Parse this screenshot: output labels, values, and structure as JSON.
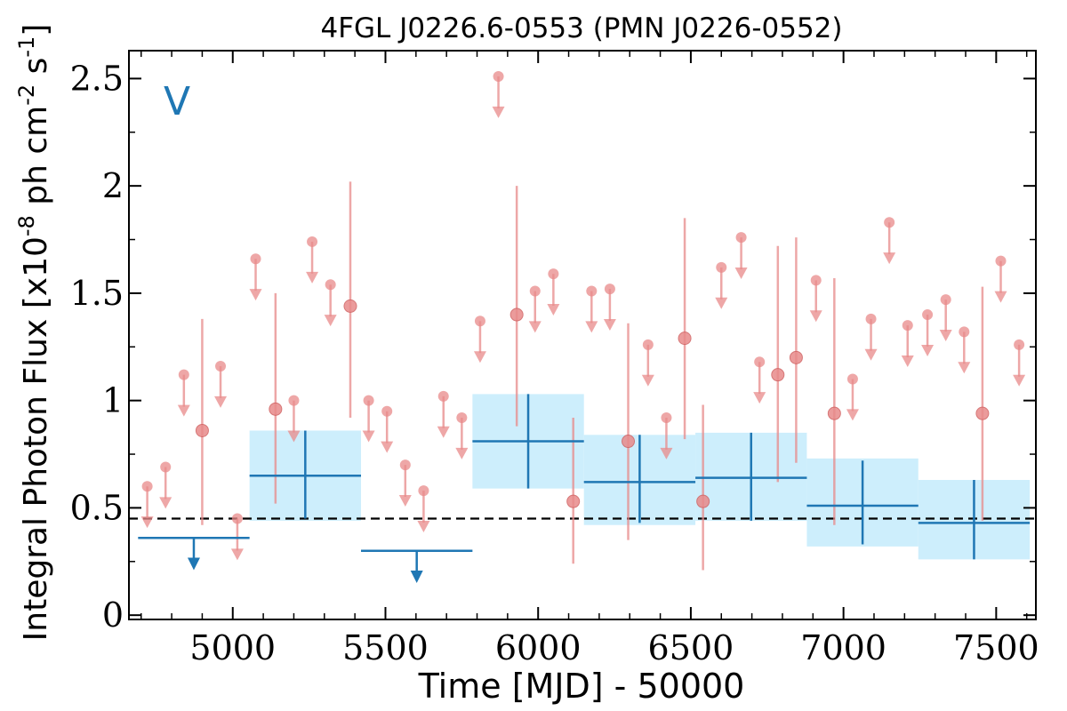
{
  "chart_data": {
    "type": "scatter",
    "title": "4FGL J0226.6-0553 (PMN J0226-0552)",
    "xlabel": "Time [MJD] - 50000",
    "ylabel": "Integral Photon Flux [x10^-8 ph cm^-2 s^-1]",
    "band_label": "V",
    "xlim": [
      4660,
      7630
    ],
    "ylim": [
      -0.02,
      2.63
    ],
    "xticks": [
      5000,
      5500,
      6000,
      6500,
      7000,
      7500
    ],
    "xtick_labels": [
      "5000",
      "5500",
      "6000",
      "6500",
      "7000",
      "7500"
    ],
    "yticks": [
      0,
      0.5,
      1,
      1.5,
      2,
      2.5
    ],
    "ytick_labels": [
      "0",
      "0.5",
      "1",
      "1.5",
      "2",
      "2.5"
    ],
    "reference_line": 0.45,
    "colors": {
      "fine_bins": "#e88a8a",
      "coarse_bins": "#1f77b4",
      "uncertainty_band": "#cdeefc",
      "reference_line": "#000000"
    },
    "series": [
      {
        "points": [
          {
            "x": 4720,
            "y": 0.6,
            "ul": true
          },
          {
            "x": 4780,
            "y": 0.69,
            "ul": true
          },
          {
            "x": 4840,
            "y": 1.12,
            "ul": true
          },
          {
            "x": 4900,
            "y": 0.86,
            "lo": 0.42,
            "hi": 1.38
          },
          {
            "x": 4960,
            "y": 1.16,
            "ul": true
          },
          {
            "x": 5015,
            "y": 0.45,
            "ul": true
          },
          {
            "x": 5075,
            "y": 1.66,
            "ul": true
          },
          {
            "x": 5140,
            "y": 0.96,
            "lo": 0.52,
            "hi": 1.5
          },
          {
            "x": 5200,
            "y": 1.0,
            "ul": true
          },
          {
            "x": 5260,
            "y": 1.74,
            "ul": true
          },
          {
            "x": 5320,
            "y": 1.54,
            "ul": true
          },
          {
            "x": 5385,
            "y": 1.44,
            "lo": 0.92,
            "hi": 2.02
          },
          {
            "x": 5445,
            "y": 1.0,
            "ul": true
          },
          {
            "x": 5505,
            "y": 0.95,
            "ul": true
          },
          {
            "x": 5565,
            "y": 0.7,
            "ul": true
          },
          {
            "x": 5625,
            "y": 0.58,
            "ul": true
          },
          {
            "x": 5690,
            "y": 1.02,
            "ul": true
          },
          {
            "x": 5750,
            "y": 0.92,
            "ul": true
          },
          {
            "x": 5810,
            "y": 1.37,
            "ul": true
          },
          {
            "x": 5870,
            "y": 2.51,
            "ul": true
          },
          {
            "x": 5930,
            "y": 1.4,
            "lo": 0.88,
            "hi": 2.0
          },
          {
            "x": 5990,
            "y": 1.51,
            "ul": true
          },
          {
            "x": 6050,
            "y": 1.59,
            "ul": true
          },
          {
            "x": 6115,
            "y": 0.53,
            "lo": 0.24,
            "hi": 0.92
          },
          {
            "x": 6175,
            "y": 1.51,
            "ul": true
          },
          {
            "x": 6235,
            "y": 1.52,
            "ul": true
          },
          {
            "x": 6295,
            "y": 0.81,
            "lo": 0.35,
            "hi": 1.36
          },
          {
            "x": 6360,
            "y": 1.26,
            "ul": true
          },
          {
            "x": 6420,
            "y": 0.92,
            "ul": true
          },
          {
            "x": 6480,
            "y": 1.29,
            "lo": 0.82,
            "hi": 1.85
          },
          {
            "x": 6540,
            "y": 0.53,
            "lo": 0.21,
            "hi": 0.98
          },
          {
            "x": 6600,
            "y": 1.62,
            "ul": true
          },
          {
            "x": 6665,
            "y": 1.76,
            "ul": true
          },
          {
            "x": 6725,
            "y": 1.18,
            "ul": true
          },
          {
            "x": 6785,
            "y": 1.12,
            "lo": 0.62,
            "hi": 1.72
          },
          {
            "x": 6845,
            "y": 1.2,
            "lo": 0.71,
            "hi": 1.76
          },
          {
            "x": 6910,
            "y": 1.56,
            "ul": true
          },
          {
            "x": 6970,
            "y": 0.94,
            "lo": 0.42,
            "hi": 1.57
          },
          {
            "x": 7030,
            "y": 1.1,
            "ul": true
          },
          {
            "x": 7090,
            "y": 1.38,
            "ul": true
          },
          {
            "x": 7150,
            "y": 1.83,
            "ul": true
          },
          {
            "x": 7210,
            "y": 1.35,
            "ul": true
          },
          {
            "x": 7275,
            "y": 1.4,
            "ul": true
          },
          {
            "x": 7335,
            "y": 1.47,
            "ul": true
          },
          {
            "x": 7395,
            "y": 1.32,
            "ul": true
          },
          {
            "x": 7455,
            "y": 0.94,
            "lo": 0.44,
            "hi": 1.53
          },
          {
            "x": 7515,
            "y": 1.65,
            "ul": true
          },
          {
            "x": 7575,
            "y": 1.26,
            "ul": true
          }
        ]
      },
      {
        "bins": [
          {
            "x0": 4690,
            "x1": 5055,
            "y": 0.36,
            "ul": true
          },
          {
            "x0": 5055,
            "x1": 5420,
            "y": 0.65,
            "lo": 0.45,
            "hi": 0.86,
            "band_lo": 0.44,
            "band_hi": 0.86
          },
          {
            "x0": 5420,
            "x1": 5785,
            "y": 0.3,
            "ul": true
          },
          {
            "x0": 5785,
            "x1": 6150,
            "y": 0.81,
            "lo": 0.59,
            "hi": 1.03,
            "band_lo": 0.59,
            "band_hi": 1.03
          },
          {
            "x0": 6150,
            "x1": 6515,
            "y": 0.62,
            "lo": 0.43,
            "hi": 0.84,
            "band_lo": 0.42,
            "band_hi": 0.84
          },
          {
            "x0": 6515,
            "x1": 6880,
            "y": 0.64,
            "lo": 0.44,
            "hi": 0.85,
            "band_lo": 0.44,
            "band_hi": 0.85
          },
          {
            "x0": 6880,
            "x1": 7245,
            "y": 0.51,
            "lo": 0.33,
            "hi": 0.72,
            "band_lo": 0.32,
            "band_hi": 0.73
          },
          {
            "x0": 7245,
            "x1": 7610,
            "y": 0.43,
            "lo": 0.26,
            "hi": 0.63,
            "band_lo": 0.26,
            "band_hi": 0.63
          }
        ]
      }
    ]
  }
}
